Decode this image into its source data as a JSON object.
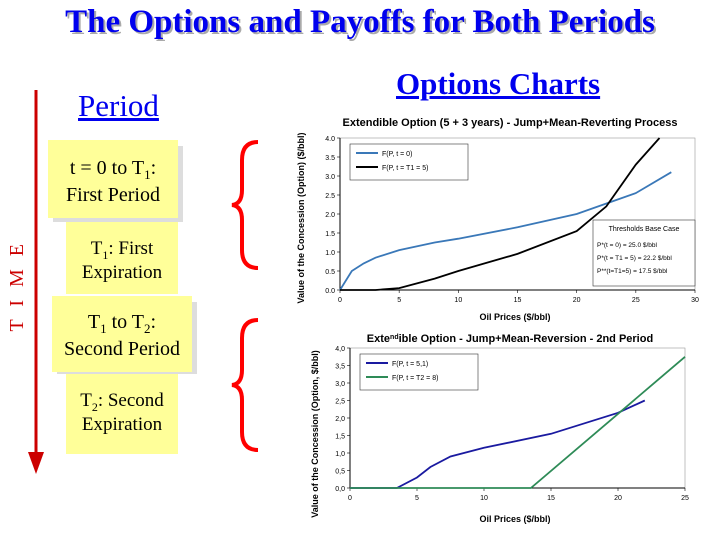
{
  "title": "The Options and Payoffs for Both Periods",
  "period_heading": "Period",
  "charts_heading": "Options Charts",
  "time_label": "T I M E",
  "periods": {
    "box1": {
      "line1": "t = 0  to  T",
      "line1_sub": "1",
      "line1_tail": ":",
      "line2": "First Period"
    },
    "box2": {
      "line1": "T",
      "line1_sub": "1",
      "line1_tail": ": First",
      "line2": "Expiration"
    },
    "box3": {
      "line1": "T",
      "line1_sub": "1",
      "line1_mid": "  to  T",
      "line1_sub2": "2",
      "line1_tail": ":",
      "line2": "Second Period"
    },
    "box4": {
      "line1": "T",
      "line1_sub": "2",
      "line1_tail": ": Second",
      "line2": "Expiration"
    }
  },
  "colors": {
    "heading": "#0000ee",
    "box": "#ffff99",
    "brace": "#ff0000",
    "arrow": "#cc0000",
    "series_blue": "#3a78b8",
    "series_black": "#000000",
    "series_navy": "#1a1aa0",
    "series_green": "#2e8b57"
  },
  "chart_data": [
    {
      "type": "line",
      "title": "Extendible Option (5 + 3 years) - Jump+Mean-Reverting Process",
      "xlabel": "Oil Prices ($/bbl)",
      "ylabel": "Value of the Concession (Option) ($/bbl)",
      "xlim": [
        0,
        30
      ],
      "ylim": [
        0,
        4.0
      ],
      "xticks": [
        "0",
        "5",
        "10",
        "15",
        "20",
        "25",
        "30"
      ],
      "yticks": [
        "0.0",
        "0.5",
        "1.0",
        "1.5",
        "2.0",
        "2.5",
        "3.0",
        "3.5",
        "4.0"
      ],
      "legend": "top-left",
      "series": [
        {
          "name": "F(P, t = 0)",
          "color": "#3a78b8",
          "x": [
            0,
            1,
            2,
            3,
            5,
            8,
            10,
            15,
            20,
            25,
            28
          ],
          "y": [
            0.0,
            0.5,
            0.7,
            0.85,
            1.05,
            1.25,
            1.35,
            1.65,
            2.0,
            2.55,
            3.1
          ]
        },
        {
          "name": "F(P, t = T1 = 5)",
          "color": "#000000",
          "x": [
            0,
            3,
            5,
            8,
            10,
            15,
            20,
            22.5,
            25,
            27
          ],
          "y": [
            0.0,
            0.0,
            0.05,
            0.3,
            0.5,
            0.95,
            1.55,
            2.2,
            3.3,
            4.0
          ]
        }
      ],
      "annotation": {
        "heading": "Thresholds Base Case",
        "lines": [
          "P*(t = 0) = 25.0 $/bbl",
          "P*(t = T1 = 5) = 22.2 $/bbl",
          "P**(t=T1=5) = 17.5 $/bbl"
        ]
      }
    },
    {
      "type": "line",
      "title": "Extendible Option - Jump+Mean-Reversion - 2nd Period",
      "title_sup": "nd",
      "xlabel": "Oil Prices ($/bbl)",
      "ylabel": "Value of the Concession (Option, $/bbl)",
      "xlim": [
        0,
        25
      ],
      "ylim": [
        0,
        4.0
      ],
      "xticks": [
        "0",
        "5",
        "10",
        "15",
        "20",
        "25"
      ],
      "yticks": [
        "0,0",
        "0,5",
        "1,0",
        "1,5",
        "2,0",
        "2,5",
        "3,0",
        "3,5",
        "4,0"
      ],
      "legend": "top-left",
      "series": [
        {
          "name": "F(P, t = 5,1)",
          "color": "#1a1aa0",
          "x": [
            0,
            3.5,
            5,
            6,
            7.5,
            10,
            15,
            20,
            22
          ],
          "y": [
            0.0,
            0.0,
            0.3,
            0.6,
            0.9,
            1.15,
            1.55,
            2.15,
            2.5
          ]
        },
        {
          "name": "F(P, t = T2 = 8)",
          "color": "#2e8b57",
          "x": [
            0,
            13.5,
            25
          ],
          "y": [
            0.0,
            0.0,
            3.75
          ]
        }
      ]
    }
  ]
}
